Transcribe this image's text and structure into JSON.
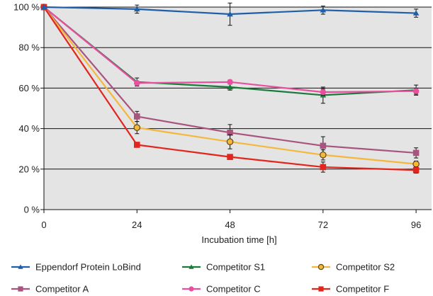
{
  "chart_data": {
    "type": "line",
    "title": "",
    "xlabel": "Incubation time [h]",
    "ylabel": "",
    "x": [
      0,
      24,
      48,
      72,
      96
    ],
    "xticks": [
      "0",
      "24",
      "48",
      "72",
      "96"
    ],
    "xlim": [
      0,
      100
    ],
    "ylim": [
      0,
      100
    ],
    "yticks": [
      "0 %",
      "20 %",
      "40 %",
      "60 %",
      "80 %",
      "100 %"
    ],
    "grid": true,
    "plot_background": "#e4e4e4",
    "legend_placement": "bottom",
    "series": [
      {
        "name": "Eppendorf Protein LoBind",
        "color": "#1f5ea8",
        "marker": "triangle",
        "values": [
          100,
          99,
          96.5,
          98.5,
          97
        ],
        "errors": [
          0,
          2,
          5.5,
          2,
          2
        ]
      },
      {
        "name": "Competitor S1",
        "color": "#1a7a3a",
        "marker": "triangle",
        "values": [
          100,
          63,
          60.5,
          56.5,
          59
        ],
        "errors": [
          0,
          2,
          1.5,
          4,
          2.5
        ]
      },
      {
        "name": "Competitor S2",
        "color": "#f5b73a",
        "marker": "circle",
        "values": [
          100,
          40.5,
          33.5,
          27,
          22.5
        ],
        "errors": [
          0,
          3,
          3.5,
          2.5,
          1.5
        ]
      },
      {
        "name": "Competitor A",
        "color": "#a8547e",
        "marker": "square",
        "values": [
          100,
          46,
          38,
          31.5,
          28
        ],
        "errors": [
          0,
          2.5,
          4,
          4.5,
          2.5
        ]
      },
      {
        "name": "Competitor C",
        "color": "#e84f9e",
        "marker": "circle",
        "values": [
          100,
          62.5,
          63,
          58,
          58.5
        ],
        "errors": [
          0,
          1,
          1,
          1.5,
          1.5
        ]
      },
      {
        "name": "Competitor F",
        "color": "#e2261d",
        "marker": "square",
        "values": [
          100,
          32,
          26,
          21,
          19.5
        ],
        "errors": [
          0,
          1,
          1,
          2.5,
          1.5
        ]
      }
    ]
  }
}
